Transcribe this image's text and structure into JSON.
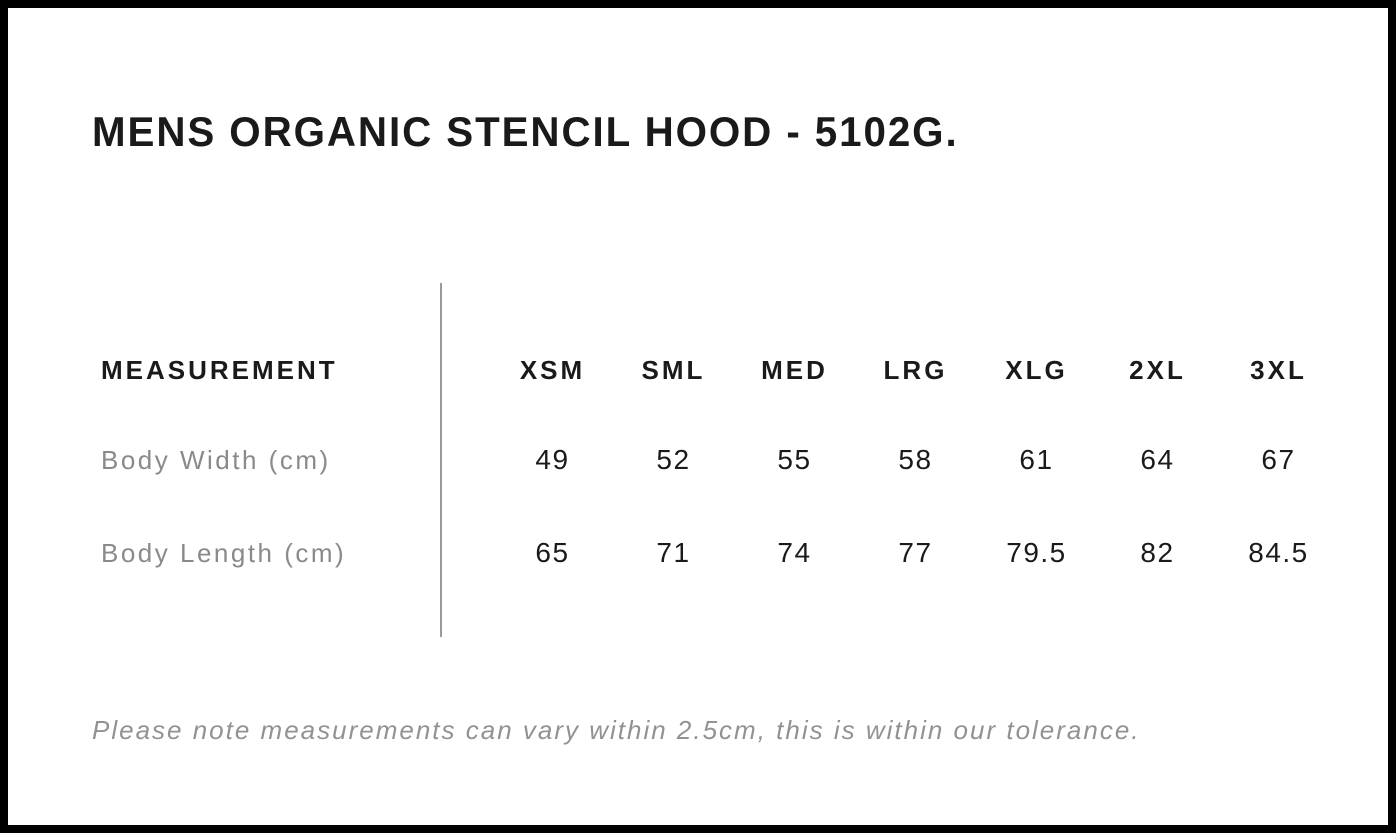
{
  "page": {
    "title": "MENS ORGANIC STENCIL HOOD - 5102G.",
    "note": "Please note measurements can vary within 2.5cm, this is within our tolerance."
  },
  "table": {
    "measurement_header": "MEASUREMENT",
    "size_headers": [
      "XSM",
      "SML",
      "MED",
      "LRG",
      "XLG",
      "2XL",
      "3XL"
    ],
    "rows": [
      {
        "label": "Body Width (cm)",
        "values": [
          "49",
          "52",
          "55",
          "58",
          "61",
          "64",
          "67"
        ]
      },
      {
        "label": "Body Length (cm)",
        "values": [
          "65",
          "71",
          "74",
          "77",
          "79.5",
          "82",
          "84.5"
        ]
      }
    ]
  },
  "colors": {
    "text_primary": "#1a1a1a",
    "label_gray": "#8a8a8a",
    "note_gray": "#929292",
    "divider_gray": "#9a9a9a",
    "border_black": "#000000",
    "background": "#ffffff"
  },
  "chart_data": {
    "type": "table",
    "title": "MENS ORGANIC STENCIL HOOD - 5102G.",
    "columns": [
      "MEASUREMENT",
      "XSM",
      "SML",
      "MED",
      "LRG",
      "XLG",
      "2XL",
      "3XL"
    ],
    "rows": [
      [
        "Body Width (cm)",
        49,
        52,
        55,
        58,
        61,
        64,
        67
      ],
      [
        "Body Length (cm)",
        65,
        71,
        74,
        77,
        79.5,
        82,
        84.5
      ]
    ],
    "footnote": "Please note measurements can vary within 2.5cm, this is within our tolerance."
  }
}
